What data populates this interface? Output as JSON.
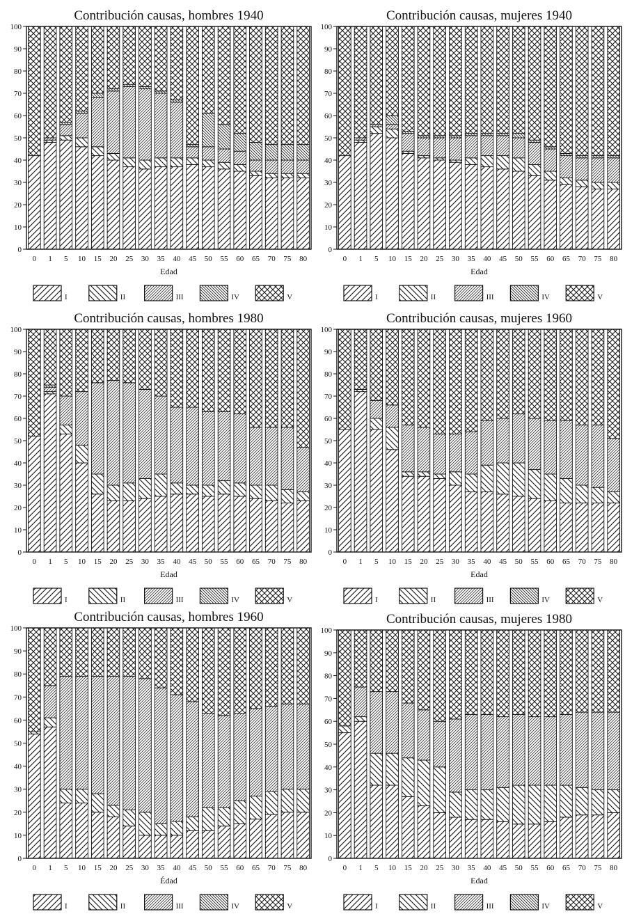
{
  "chart_data": [
    {
      "type": "bar",
      "stacked": true,
      "title": "Contribución causas, hombres 1940",
      "xlabel": "Edad",
      "ylabel": "",
      "categories": [
        "0",
        "1",
        "5",
        "10",
        "15",
        "20",
        "25",
        "30",
        "35",
        "40",
        "45",
        "50",
        "55",
        "60",
        "65",
        "70",
        "75",
        "80"
      ],
      "ylim": [
        0,
        100
      ],
      "yticks": [
        0,
        10,
        20,
        30,
        40,
        50,
        60,
        70,
        80,
        90,
        100
      ],
      "series": [
        {
          "name": "I",
          "values": [
            42,
            48,
            49,
            46,
            42,
            40,
            37,
            36,
            37,
            37,
            38,
            37,
            36,
            35,
            33,
            32,
            32,
            32
          ]
        },
        {
          "name": "II",
          "values": [
            0,
            1,
            2,
            4,
            4,
            3,
            4,
            4,
            4,
            4,
            3,
            3,
            3,
            3,
            2,
            2,
            2,
            2
          ]
        },
        {
          "name": "III",
          "values": [
            0,
            1,
            5,
            11,
            22,
            28,
            32,
            32,
            29,
            25,
            5,
            6,
            6,
            6,
            5,
            6,
            6,
            6
          ]
        },
        {
          "name": "IV",
          "values": [
            0,
            0,
            1,
            1,
            2,
            1,
            1,
            1,
            1,
            1,
            1,
            15,
            11,
            8,
            8,
            7,
            7,
            7
          ]
        },
        {
          "name": "V",
          "values": [
            58,
            50,
            43,
            38,
            30,
            28,
            26,
            27,
            29,
            33,
            53,
            39,
            44,
            48,
            52,
            53,
            53,
            53
          ]
        }
      ]
    },
    {
      "type": "bar",
      "stacked": true,
      "title": "Contribución causas, mujeres 1940",
      "xlabel": "Edad",
      "ylabel": "",
      "categories": [
        "0",
        "1",
        "5",
        "10",
        "15",
        "20",
        "25",
        "30",
        "35",
        "40",
        "45",
        "50",
        "55",
        "60",
        "65",
        "70",
        "75",
        "80"
      ],
      "ylim": [
        0,
        100
      ],
      "yticks": [
        0,
        10,
        20,
        30,
        40,
        50,
        60,
        70,
        80,
        90,
        100
      ],
      "series": [
        {
          "name": "I",
          "values": [
            42,
            48,
            52,
            50,
            43,
            41,
            40,
            39,
            38,
            37,
            36,
            35,
            33,
            31,
            29,
            28,
            27,
            27
          ]
        },
        {
          "name": "II",
          "values": [
            0,
            1,
            3,
            4,
            1,
            1,
            1,
            1,
            3,
            5,
            6,
            6,
            5,
            4,
            3,
            3,
            3,
            3
          ]
        },
        {
          "name": "III",
          "values": [
            0,
            1,
            1,
            2,
            8,
            8,
            9,
            10,
            10,
            9,
            9,
            9,
            10,
            10,
            10,
            10,
            11,
            11
          ]
        },
        {
          "name": "IV",
          "values": [
            0,
            0,
            0,
            4,
            1,
            1,
            1,
            1,
            1,
            1,
            1,
            2,
            1,
            1,
            1,
            1,
            1,
            1
          ]
        },
        {
          "name": "V",
          "values": [
            58,
            50,
            44,
            40,
            47,
            49,
            49,
            49,
            48,
            48,
            48,
            48,
            51,
            54,
            57,
            58,
            58,
            58
          ]
        }
      ]
    },
    {
      "type": "bar",
      "stacked": true,
      "title": "Contribución causas, hombres 1980",
      "xlabel": "Edad",
      "ylabel": "",
      "categories": [
        "0",
        "1",
        "5",
        "10",
        "15",
        "20",
        "25",
        "30",
        "35",
        "40",
        "45",
        "50",
        "55",
        "60",
        "65",
        "70",
        "75",
        "80"
      ],
      "ylim": [
        0,
        100
      ],
      "yticks": [
        0,
        10,
        20,
        30,
        40,
        50,
        60,
        70,
        80,
        90,
        100
      ],
      "series": [
        {
          "name": "I",
          "values": [
            52,
            71,
            53,
            40,
            26,
            23,
            23,
            24,
            25,
            26,
            26,
            25,
            26,
            25,
            24,
            23,
            22,
            23
          ]
        },
        {
          "name": "II",
          "values": [
            0,
            1,
            4,
            8,
            9,
            7,
            8,
            9,
            10,
            5,
            4,
            5,
            6,
            6,
            6,
            7,
            6,
            4
          ]
        },
        {
          "name": "III",
          "values": [
            0,
            2,
            13,
            24,
            41,
            47,
            45,
            40,
            35,
            34,
            35,
            33,
            31,
            31,
            26,
            26,
            28,
            20
          ]
        },
        {
          "name": "IV",
          "values": [
            0,
            1,
            0,
            0,
            0,
            0,
            0,
            0,
            0,
            0,
            0,
            0,
            0,
            0,
            0,
            0,
            0,
            0
          ]
        },
        {
          "name": "V",
          "values": [
            48,
            25,
            30,
            28,
            24,
            23,
            24,
            27,
            30,
            35,
            35,
            37,
            37,
            38,
            44,
            44,
            44,
            53
          ]
        }
      ]
    },
    {
      "type": "bar",
      "stacked": true,
      "title": "Contribución causas, mujeres 1960",
      "xlabel": "Edad",
      "ylabel": "",
      "categories": [
        "0",
        "1",
        "5",
        "10",
        "15",
        "20",
        "25",
        "30",
        "35",
        "40",
        "45",
        "50",
        "55",
        "60",
        "65",
        "70",
        "75",
        "80"
      ],
      "ylim": [
        0,
        100
      ],
      "yticks": [
        0,
        10,
        20,
        30,
        40,
        50,
        60,
        70,
        80,
        90,
        100
      ],
      "series": [
        {
          "name": "I",
          "values": [
            55,
            72,
            55,
            46,
            34,
            34,
            33,
            30,
            27,
            27,
            26,
            25,
            24,
            23,
            22,
            22,
            22,
            22
          ]
        },
        {
          "name": "II",
          "values": [
            0,
            1,
            5,
            10,
            2,
            2,
            2,
            6,
            8,
            12,
            14,
            15,
            13,
            12,
            11,
            8,
            7,
            5
          ]
        },
        {
          "name": "III",
          "values": [
            0,
            0,
            8,
            10,
            21,
            20,
            18,
            17,
            19,
            20,
            20,
            22,
            23,
            24,
            26,
            27,
            28,
            24
          ]
        },
        {
          "name": "IV",
          "values": [
            0,
            0,
            0,
            0,
            0,
            0,
            0,
            0,
            0,
            0,
            0,
            0,
            0,
            0,
            0,
            0,
            0,
            0
          ]
        },
        {
          "name": "V",
          "values": [
            45,
            27,
            32,
            34,
            43,
            44,
            47,
            47,
            46,
            41,
            40,
            38,
            40,
            41,
            41,
            43,
            43,
            49
          ]
        }
      ]
    },
    {
      "type": "bar",
      "stacked": true,
      "title": "Contribución causas, hombres 1960",
      "xlabel": "Édad",
      "ylabel": "",
      "categories": [
        "0",
        "1",
        "5",
        "10",
        "15",
        "20",
        "25",
        "30",
        "35",
        "40",
        "45",
        "50",
        "55",
        "60",
        "65",
        "70",
        "75",
        "80"
      ],
      "ylim": [
        0,
        100
      ],
      "yticks": [
        0,
        10,
        20,
        30,
        40,
        50,
        60,
        70,
        80,
        90,
        100
      ],
      "series": [
        {
          "name": "I",
          "values": [
            54,
            57,
            24,
            24,
            20,
            18,
            14,
            10,
            10,
            10,
            12,
            12,
            14,
            15,
            17,
            19,
            20,
            20
          ]
        },
        {
          "name": "II",
          "values": [
            1,
            4,
            6,
            6,
            8,
            5,
            7,
            10,
            5,
            6,
            6,
            10,
            8,
            10,
            10,
            10,
            10,
            10
          ]
        },
        {
          "name": "III",
          "values": [
            0,
            14,
            49,
            49,
            51,
            56,
            58,
            58,
            59,
            55,
            50,
            41,
            40,
            38,
            38,
            37,
            37,
            37
          ]
        },
        {
          "name": "IV",
          "values": [
            0,
            0,
            0,
            0,
            0,
            0,
            0,
            0,
            0,
            0,
            0,
            0,
            0,
            0,
            0,
            0,
            0,
            0
          ]
        },
        {
          "name": "V",
          "values": [
            45,
            25,
            21,
            21,
            21,
            21,
            21,
            22,
            26,
            29,
            32,
            37,
            38,
            37,
            35,
            34,
            33,
            33
          ]
        }
      ]
    },
    {
      "type": "bar",
      "stacked": true,
      "title": "Contribución causas, mujeres 1980",
      "xlabel": "Edad",
      "ylabel": "",
      "categories": [
        "0",
        "1",
        "5",
        "10",
        "15",
        "20",
        "25",
        "30",
        "35",
        "40",
        "45",
        "50",
        "55",
        "60",
        "65",
        "70",
        "75",
        "80"
      ],
      "ylim": [
        0,
        100
      ],
      "yticks": [
        0,
        10,
        20,
        30,
        40,
        50,
        60,
        70,
        80,
        90,
        100
      ],
      "series": [
        {
          "name": "I",
          "values": [
            55,
            60,
            32,
            32,
            27,
            23,
            20,
            18,
            17,
            17,
            16,
            15,
            15,
            16,
            18,
            19,
            19,
            20
          ]
        },
        {
          "name": "II",
          "values": [
            3,
            2,
            14,
            14,
            17,
            20,
            20,
            11,
            13,
            13,
            15,
            17,
            17,
            16,
            14,
            12,
            11,
            10
          ]
        },
        {
          "name": "III",
          "values": [
            0,
            13,
            27,
            27,
            24,
            22,
            20,
            32,
            33,
            33,
            31,
            31,
            30,
            30,
            31,
            33,
            34,
            34
          ]
        },
        {
          "name": "IV",
          "values": [
            0,
            0,
            0,
            0,
            0,
            0,
            0,
            0,
            0,
            0,
            0,
            0,
            0,
            0,
            0,
            0,
            0,
            0
          ]
        },
        {
          "name": "V",
          "values": [
            42,
            25,
            27,
            27,
            32,
            35,
            40,
            39,
            37,
            37,
            38,
            37,
            38,
            38,
            37,
            36,
            36,
            36
          ]
        }
      ]
    }
  ],
  "legend": {
    "labels": [
      "I",
      "II",
      "III",
      "IV",
      "V"
    ]
  }
}
